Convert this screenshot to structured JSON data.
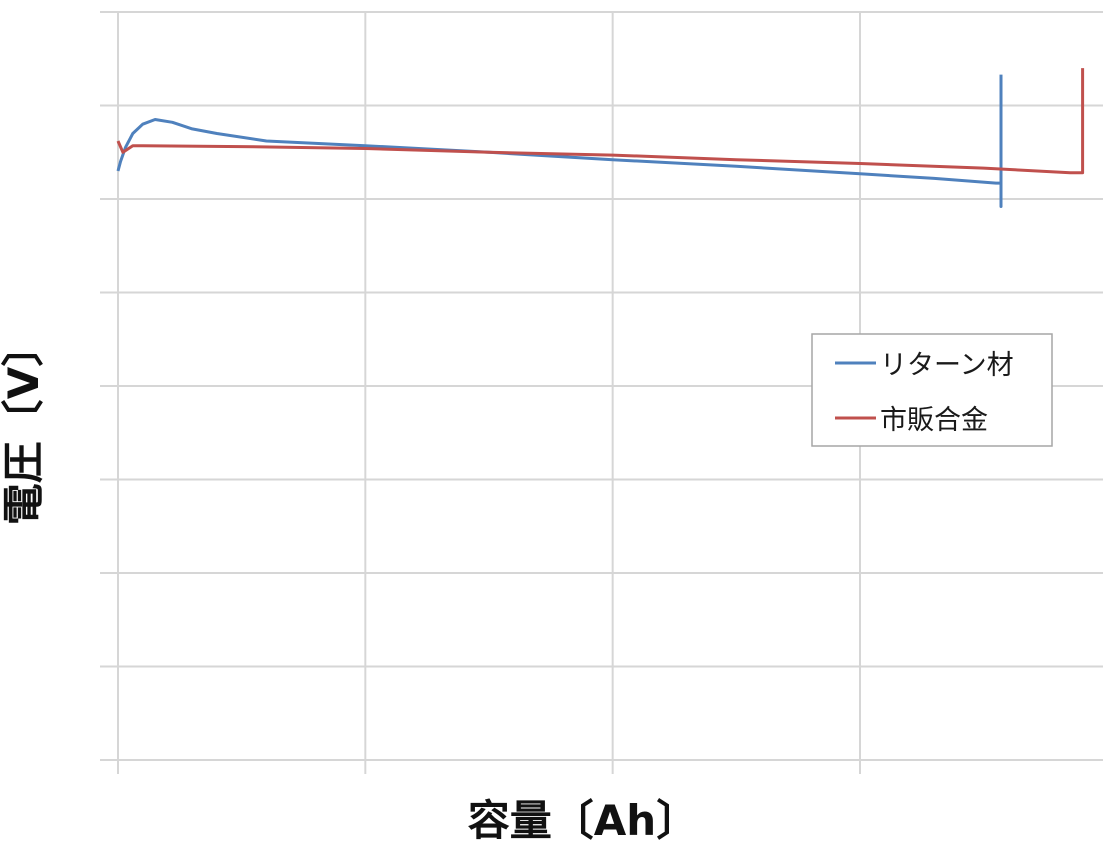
{
  "chart_data": {
    "type": "line",
    "title": "",
    "xlabel": "容量〔Ah〕",
    "ylabel": "電圧〔V〕",
    "xlim": [
      0,
      4
    ],
    "ylim": [
      0,
      8
    ],
    "grid": true,
    "tick_labels_visible": false,
    "legend_position": "right",
    "series": [
      {
        "name": "リターン材",
        "color": "#4f81bd",
        "x": [
          0,
          0.01,
          0.03,
          0.06,
          0.1,
          0.15,
          0.22,
          0.3,
          0.4,
          0.6,
          1.0,
          1.5,
          2.0,
          2.5,
          3.0,
          3.3,
          3.55,
          3.57,
          3.57,
          3.57
        ],
        "y": [
          6.3,
          6.4,
          6.55,
          6.7,
          6.8,
          6.85,
          6.82,
          6.75,
          6.7,
          6.62,
          6.57,
          6.5,
          6.42,
          6.35,
          6.27,
          6.22,
          6.17,
          6.17,
          5.92,
          7.33
        ]
      },
      {
        "name": "市販合金",
        "color": "#c0504d",
        "x": [
          0,
          0.02,
          0.06,
          0.1,
          0.5,
          1.0,
          1.5,
          2.0,
          2.5,
          3.0,
          3.5,
          3.85,
          3.9,
          3.9
        ],
        "y": [
          6.62,
          6.5,
          6.57,
          6.57,
          6.56,
          6.54,
          6.5,
          6.47,
          6.42,
          6.38,
          6.33,
          6.28,
          6.28,
          7.4
        ]
      }
    ]
  }
}
